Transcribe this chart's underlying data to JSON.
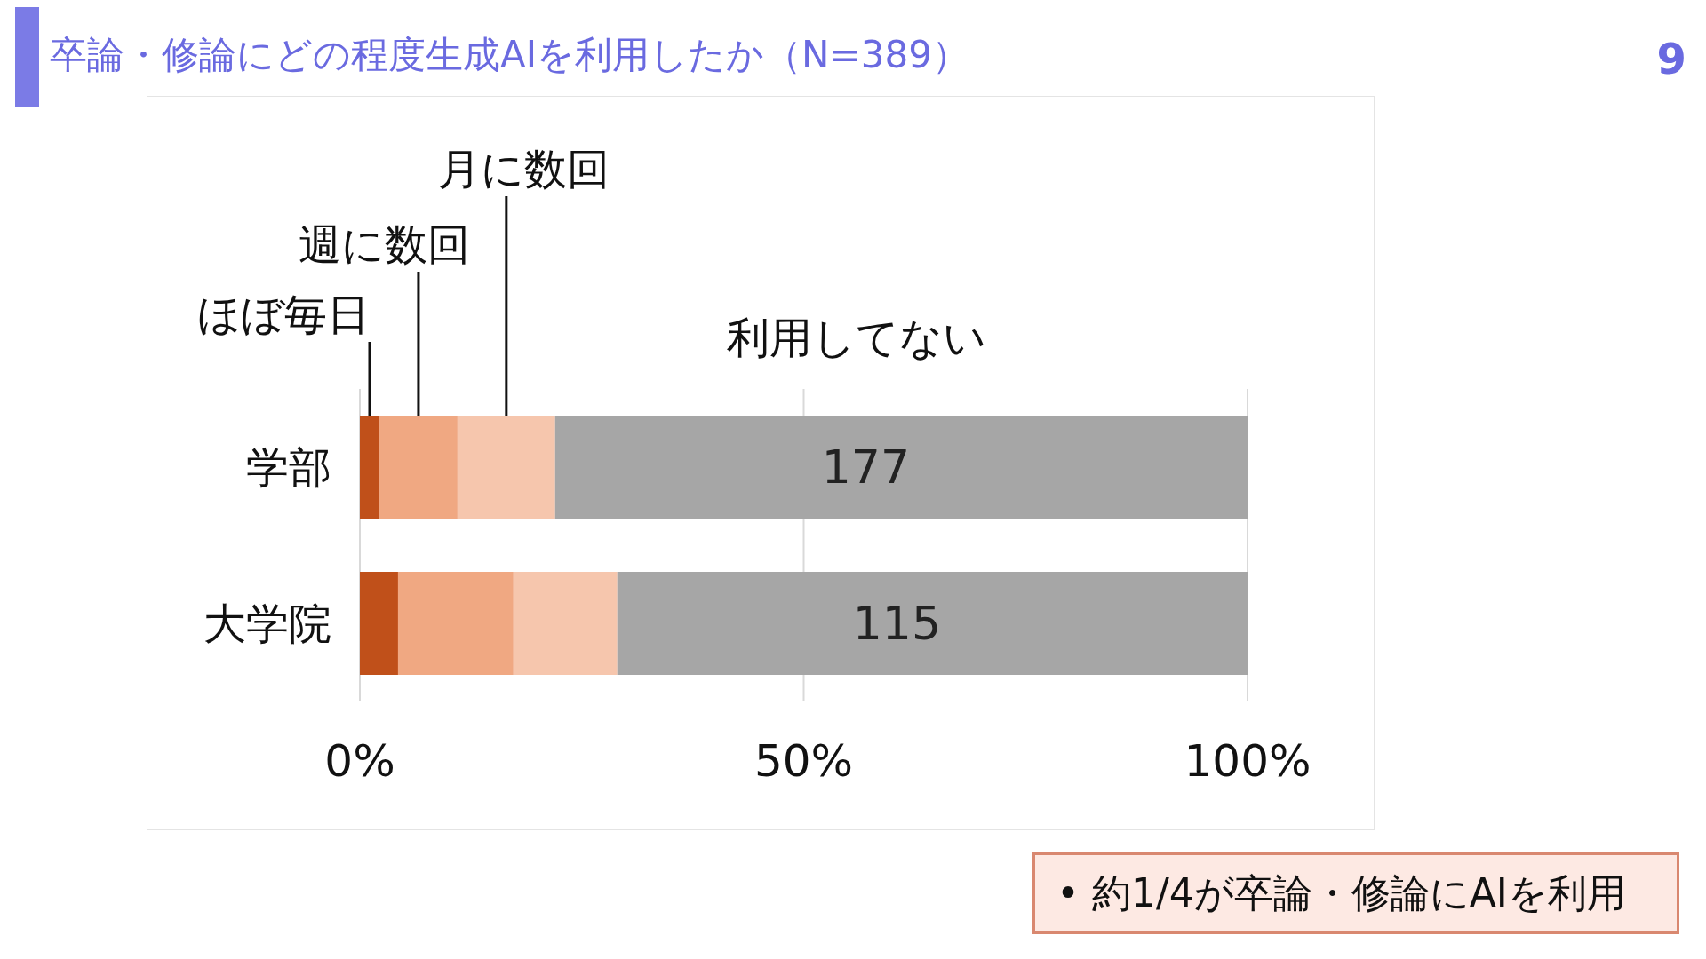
{
  "chart_data": {
    "type": "bar",
    "orientation": "horizontal",
    "stacked": true,
    "title": "卒論・修論にどの程度生成AIを利用したか（N=389）",
    "categories": [
      "学部",
      "大学院"
    ],
    "series": [
      {
        "name": "ほぼ毎日",
        "color": "#c0501a",
        "values": [
          2.2,
          4.3
        ]
      },
      {
        "name": "週に数回",
        "color": "#f0a882",
        "values": [
          8.8,
          13.0
        ]
      },
      {
        "name": "月に数回",
        "color": "#f6c6ad",
        "values": [
          11.0,
          11.7
        ]
      },
      {
        "name": "利用してない",
        "color": "#a6a6a6",
        "values": [
          78.0,
          71.0
        ]
      }
    ],
    "xlim": [
      0,
      100
    ],
    "xticks": [
      {
        "value": 0,
        "label": "0%"
      },
      {
        "value": 50,
        "label": "50%"
      },
      {
        "value": 100,
        "label": "100%"
      }
    ],
    "grid": "x",
    "legend": false,
    "annotations": [
      "9",
      "• 約1/4が卒論・修論にAIを利用",
      "177",
      "115"
    ]
  }
}
